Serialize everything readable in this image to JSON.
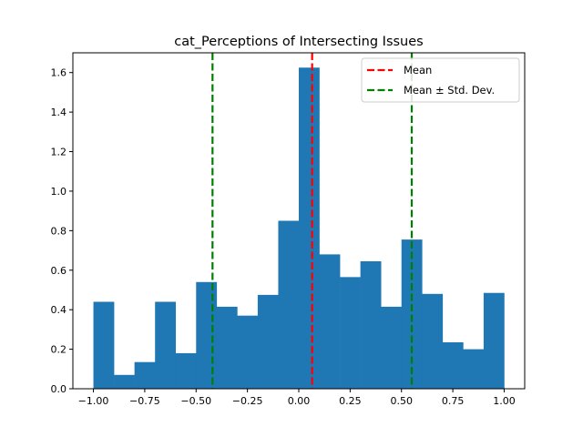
{
  "chart_data": {
    "type": "bar",
    "title": "cat_Perceptions of Intersecting Issues",
    "xlabel": "",
    "ylabel": "",
    "xlim": [
      -1.1,
      1.1
    ],
    "ylim": [
      0,
      1.7
    ],
    "xticks": [
      -1.0,
      -0.75,
      -0.5,
      -0.25,
      0.0,
      0.25,
      0.5,
      0.75,
      1.0
    ],
    "xtick_labels": [
      "−1.00",
      "−0.75",
      "−0.50",
      "−0.25",
      "0.00",
      "0.25",
      "0.50",
      "0.75",
      "1.00"
    ],
    "yticks": [
      0.0,
      0.2,
      0.4,
      0.6,
      0.8,
      1.0,
      1.2,
      1.4,
      1.6
    ],
    "ytick_labels": [
      "0.0",
      "0.2",
      "0.4",
      "0.6",
      "0.8",
      "1.0",
      "1.2",
      "1.4",
      "1.6"
    ],
    "bin_edges": [
      -1.0,
      -0.9,
      -0.8,
      -0.7,
      -0.6,
      -0.5,
      -0.4,
      -0.3,
      -0.2,
      -0.1,
      0.0,
      0.1,
      0.2,
      0.3,
      0.4,
      0.5,
      0.6,
      0.7,
      0.8,
      0.9,
      1.0
    ],
    "values": [
      0.44,
      0.07,
      0.135,
      0.44,
      0.18,
      0.54,
      0.415,
      0.37,
      0.475,
      0.85,
      1.625,
      0.68,
      0.565,
      0.645,
      0.415,
      0.755,
      0.48,
      0.235,
      0.2,
      0.485
    ],
    "bar_color": "#1f77b4",
    "lines": [
      {
        "name": "Mean",
        "x": 0.065,
        "color": "#ff0000"
      },
      {
        "name": "Mean ± Std. Dev.",
        "x": -0.42,
        "color": "#008000"
      },
      {
        "name": "Mean ± Std. Dev.",
        "x": 0.55,
        "color": "#008000",
        "hide_in_legend": true
      }
    ],
    "legend": {
      "placement": "top-right",
      "entries": [
        {
          "label": "Mean",
          "color": "#ff0000"
        },
        {
          "label": "Mean ± Std. Dev.",
          "color": "#008000"
        }
      ]
    },
    "grid": false
  }
}
